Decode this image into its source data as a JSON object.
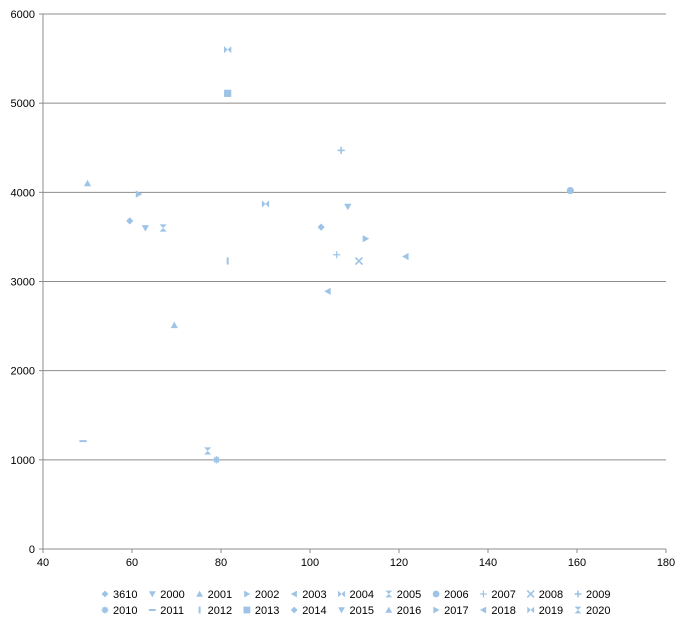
{
  "chart_data": {
    "type": "scatter",
    "title": "",
    "xlabel": "",
    "ylabel": "",
    "xlim": [
      40,
      180
    ],
    "ylim": [
      0,
      6000
    ],
    "x_ticks": [
      40,
      60,
      80,
      100,
      120,
      140,
      160,
      180
    ],
    "y_ticks": [
      0,
      1000,
      2000,
      3000,
      4000,
      5000,
      6000
    ],
    "grid": "horizontal",
    "legend_position": "bottom",
    "marker_color": "#9dc3e6",
    "series": [
      {
        "name": "3610",
        "marker": "diamond",
        "x": 59.5,
        "y": 3680
      },
      {
        "name": "2000",
        "marker": "triangle-down",
        "x": 63,
        "y": 3600
      },
      {
        "name": "2001",
        "marker": "triangle-up",
        "x": 69.5,
        "y": 2510
      },
      {
        "name": "2002",
        "marker": "triangle-right",
        "x": 61.5,
        "y": 3980
      },
      {
        "name": "2003",
        "marker": "triangle-left",
        "x": 104,
        "y": 2890
      },
      {
        "name": "2004",
        "marker": "bowtie",
        "x": 81.5,
        "y": 5600
      },
      {
        "name": "2005",
        "marker": "hourglass",
        "x": 67,
        "y": 3600
      },
      {
        "name": "2006",
        "marker": "circle",
        "x": 158.5,
        "y": 4020
      },
      {
        "name": "2007",
        "marker": "plus-thin",
        "x": 106,
        "y": 3300
      },
      {
        "name": "2008",
        "marker": "x",
        "x": 111,
        "y": 3230
      },
      {
        "name": "2009",
        "marker": "plus",
        "x": 107,
        "y": 4470
      },
      {
        "name": "2010",
        "marker": "asterisk",
        "x": 79,
        "y": 1000
      },
      {
        "name": "2011",
        "marker": "dash",
        "x": 49,
        "y": 1210
      },
      {
        "name": "2012",
        "marker": "bar",
        "x": 81.5,
        "y": 3230
      },
      {
        "name": "2013",
        "marker": "square",
        "x": 81.5,
        "y": 5110
      },
      {
        "name": "2014",
        "marker": "diamond",
        "x": 102.5,
        "y": 3610
      },
      {
        "name": "2015",
        "marker": "triangle-down",
        "x": 108.5,
        "y": 3840
      },
      {
        "name": "2016",
        "marker": "triangle-up",
        "x": 50,
        "y": 4100
      },
      {
        "name": "2017",
        "marker": "triangle-right",
        "x": 112.5,
        "y": 3480
      },
      {
        "name": "2018",
        "marker": "triangle-left",
        "x": 121.5,
        "y": 3280
      },
      {
        "name": "2019",
        "marker": "bowtie",
        "x": 90,
        "y": 3870
      },
      {
        "name": "2020",
        "marker": "hourglass",
        "x": 77,
        "y": 1100
      }
    ]
  }
}
